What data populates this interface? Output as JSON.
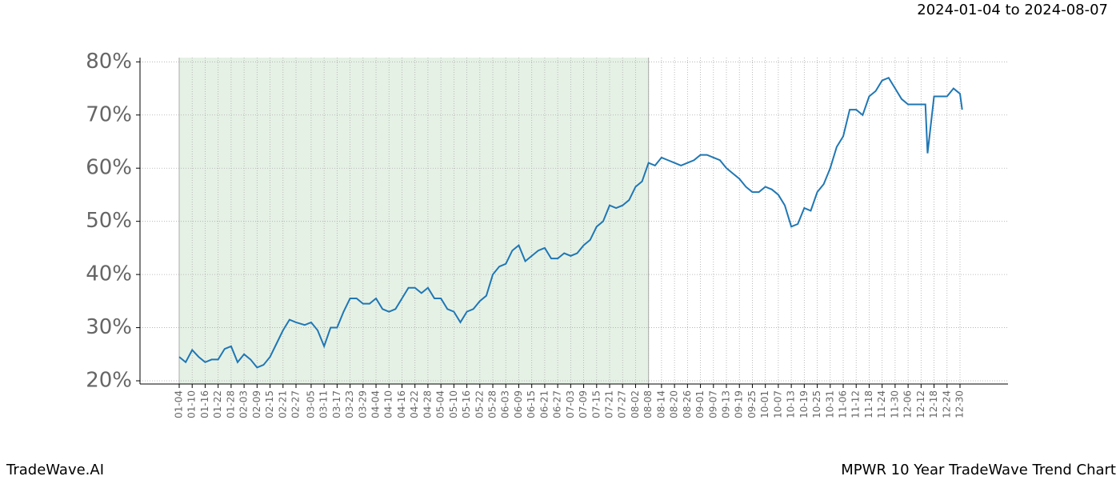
{
  "chart_data": {
    "type": "line",
    "date_range": "2024-01-04 to 2024-08-07",
    "brand": "TradeWave.AI",
    "title": "MPWR 10 Year TradeWave Trend Chart",
    "categories": [
      "01-04",
      "01-10",
      "01-16",
      "01-22",
      "01-28",
      "02-03",
      "02-09",
      "02-15",
      "02-21",
      "02-27",
      "03-05",
      "03-11",
      "03-17",
      "03-23",
      "03-29",
      "04-04",
      "04-10",
      "04-16",
      "04-22",
      "04-28",
      "05-04",
      "05-10",
      "05-16",
      "05-22",
      "05-28",
      "06-03",
      "06-09",
      "06-15",
      "06-21",
      "06-27",
      "07-03",
      "07-09",
      "07-15",
      "07-21",
      "07-27",
      "08-02",
      "08-08",
      "08-14",
      "08-20",
      "08-26",
      "09-01",
      "09-07",
      "09-13",
      "09-19",
      "09-25",
      "10-01",
      "10-07",
      "10-13",
      "10-19",
      "10-25",
      "10-31",
      "11-06",
      "11-12",
      "11-18",
      "11-24",
      "11-30",
      "12-06",
      "12-12",
      "12-18",
      "12-24",
      "12-30"
    ],
    "shade": [
      "01-04",
      "08-08"
    ],
    "shade_color": "#e6f1e6",
    "series": [
      {
        "color": "#1f77b4",
        "x": [
          "01-04",
          "01-07",
          "01-10",
          "01-13",
          "01-16",
          "01-19",
          "01-22",
          "01-25",
          "01-28",
          "01-31",
          "02-03",
          "02-06",
          "02-09",
          "02-12",
          "02-15",
          "02-18",
          "02-21",
          "02-24",
          "02-27",
          "03-02",
          "03-05",
          "03-08",
          "03-11",
          "03-14",
          "03-17",
          "03-20",
          "03-23",
          "03-26",
          "03-29",
          "04-01",
          "04-04",
          "04-07",
          "04-10",
          "04-13",
          "04-16",
          "04-19",
          "04-22",
          "04-25",
          "04-28",
          "05-01",
          "05-04",
          "05-07",
          "05-10",
          "05-13",
          "05-16",
          "05-19",
          "05-22",
          "05-25",
          "05-28",
          "05-31",
          "06-03",
          "06-06",
          "06-09",
          "06-12",
          "06-15",
          "06-18",
          "06-21",
          "06-24",
          "06-27",
          "06-30",
          "07-03",
          "07-06",
          "07-09",
          "07-12",
          "07-15",
          "07-18",
          "07-21",
          "07-24",
          "07-27",
          "07-30",
          "08-02",
          "08-05",
          "08-08",
          "08-11",
          "08-14",
          "08-17",
          "08-20",
          "08-23",
          "08-26",
          "08-29",
          "09-01",
          "09-04",
          "09-07",
          "09-10",
          "09-13",
          "09-16",
          "09-19",
          "09-22",
          "09-25",
          "09-28",
          "10-01",
          "10-04",
          "10-07",
          "10-10",
          "10-13",
          "10-16",
          "10-19",
          "10-22",
          "10-25",
          "10-28",
          "10-31",
          "11-03",
          "11-06",
          "11-09",
          "11-12",
          "11-15",
          "11-18",
          "11-21",
          "11-24",
          "11-27",
          "11-30",
          "12-03",
          "12-06",
          "12-09",
          "12-12",
          "12-14",
          "12-15",
          "12-18",
          "12-21",
          "12-24",
          "12-27",
          "12-30",
          "12-31"
        ],
        "values": [
          24.5,
          23.5,
          25.8,
          24.5,
          23.5,
          24,
          24,
          26,
          26.5,
          23.5,
          25,
          24,
          22.5,
          23,
          24.5,
          27,
          29.5,
          31.5,
          31,
          30.5,
          31,
          29.5,
          26.5,
          30,
          30,
          33,
          35.5,
          35.5,
          34.5,
          34.5,
          35.5,
          33.5,
          33,
          33.5,
          35.5,
          37.5,
          37.5,
          36.5,
          37.5,
          35.5,
          35.5,
          33.5,
          33,
          31,
          33,
          33.5,
          35,
          36,
          40,
          41.5,
          42,
          44.5,
          45.5,
          42.5,
          43.5,
          44.5,
          45,
          43,
          43,
          44,
          43.5,
          44,
          45.5,
          46.5,
          49,
          50,
          53,
          52.5,
          53,
          54,
          56.5,
          57.5,
          61,
          60.5,
          62,
          61.5,
          61,
          60.5,
          61,
          61.5,
          62.5,
          62.5,
          62,
          61.5,
          60,
          59,
          58,
          56.5,
          55.5,
          55.5,
          56.5,
          56,
          55,
          53,
          49,
          49.5,
          52.5,
          52,
          55.5,
          57,
          60,
          64,
          66,
          71,
          71,
          70,
          73.5,
          74.5,
          76.5,
          77,
          75,
          73,
          72,
          72,
          72,
          72,
          62.8,
          73.5,
          73.5,
          73.5,
          75,
          74,
          71
        ]
      }
    ],
    "ylim": [
      19.4,
      80.8
    ],
    "yticks": [
      {
        "value": 20,
        "label": "20%"
      },
      {
        "value": 30,
        "label": "30%"
      },
      {
        "value": 40,
        "label": "40%"
      },
      {
        "value": 50,
        "label": "50%"
      },
      {
        "value": 60,
        "label": "60%"
      },
      {
        "value": 70,
        "label": "70%"
      },
      {
        "value": 80,
        "label": "80%"
      }
    ],
    "grid": true
  }
}
